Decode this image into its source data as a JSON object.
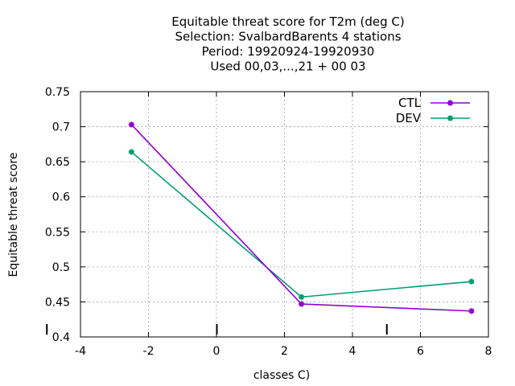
{
  "chart_data": {
    "type": "line",
    "title_lines": [
      "Equitable threat score  for T2m (deg C)",
      "Selection: SvalbardBarents       4 stations",
      "Period: 19920924-19920930",
      "Used  00,03,...,21  + 00 03"
    ],
    "xlabel": "classes C)",
    "ylabel": "Equitable threat score",
    "xlim": [
      -4,
      8
    ],
    "ylim": [
      0.4,
      0.75
    ],
    "xticks": [
      -4,
      -2,
      0,
      2,
      4,
      6,
      8
    ],
    "xtick_labels": [
      "-4",
      "-2",
      "0",
      "2",
      "4",
      "6",
      "8"
    ],
    "yticks": [
      0.4,
      0.45,
      0.5,
      0.55,
      0.6,
      0.65,
      0.7,
      0.75
    ],
    "ytick_labels": [
      "0.4",
      "0.45",
      "0.5",
      "0.55",
      "0.6",
      "0.65",
      "0.7",
      "0.75"
    ],
    "grid": true,
    "legend_position": "top-right",
    "class_markers": [
      -5,
      0,
      5
    ],
    "series": [
      {
        "name": "CTL",
        "color": "#9400d3",
        "x": [
          -2.5,
          2.5,
          7.5
        ],
        "y": [
          0.703,
          0.447,
          0.437
        ]
      },
      {
        "name": "DEV",
        "color": "#009e73",
        "x": [
          -2.5,
          2.5,
          7.5
        ],
        "y": [
          0.664,
          0.457,
          0.479
        ]
      }
    ]
  }
}
